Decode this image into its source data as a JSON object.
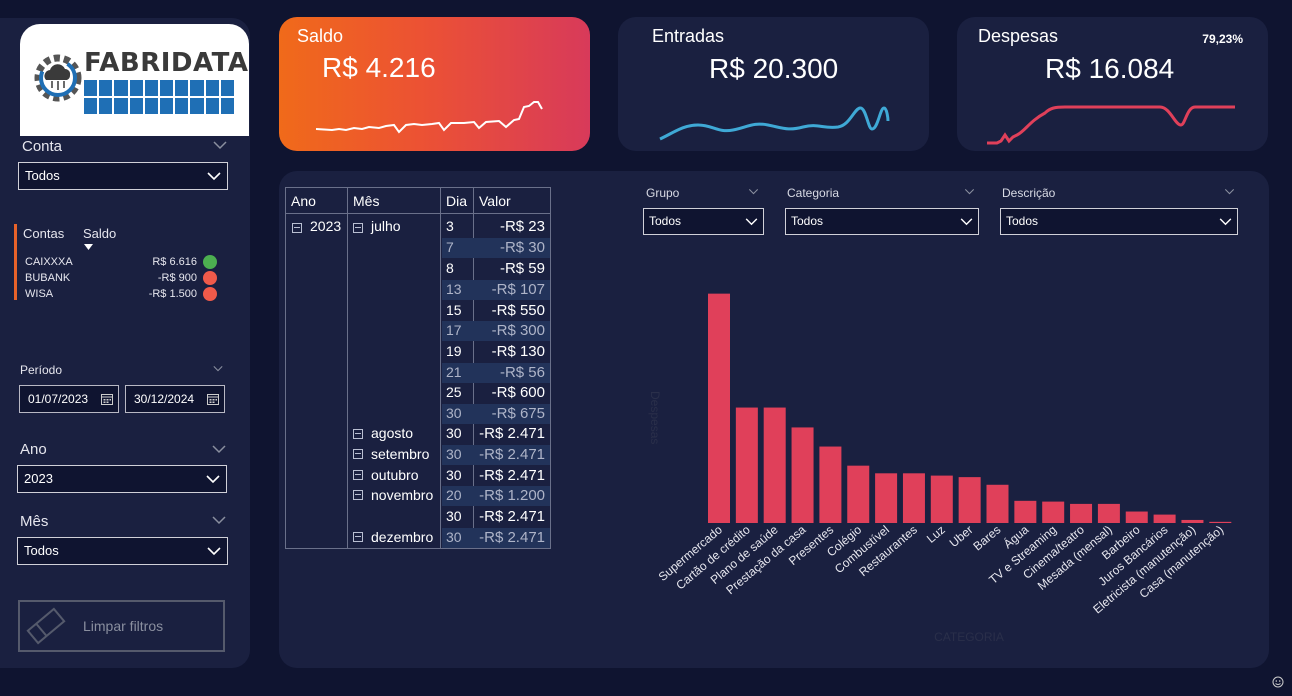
{
  "sidebar": {
    "logo_text": "FABRIDATA",
    "conta": {
      "label": "Conta",
      "value": "Todos"
    },
    "contas_table": {
      "headers": [
        "Contas",
        "Saldo"
      ],
      "rows": [
        {
          "name": "CAIXXXA",
          "value": "R$ 6.616",
          "status_color": "#4caf50"
        },
        {
          "name": "BUBANK",
          "value": "-R$ 900",
          "status_color": "#f05a4a"
        },
        {
          "name": "WISA",
          "value": "-R$ 1.500",
          "status_color": "#f05a4a"
        }
      ]
    },
    "periodo": {
      "label": "Período",
      "start": "01/07/2023",
      "end": "30/12/2024"
    },
    "ano": {
      "label": "Ano",
      "value": "2023"
    },
    "mes": {
      "label": "Mês",
      "value": "Todos"
    },
    "clear_label": "Limpar filtros"
  },
  "kpis": {
    "saldo": {
      "title": "Saldo",
      "value": "R$ 4.216"
    },
    "entradas": {
      "title": "Entradas",
      "value": "R$ 20.300"
    },
    "despesas": {
      "title": "Despesas",
      "value": "R$ 16.084",
      "pct": "79,23%"
    }
  },
  "colors": {
    "accent": "#e8622a",
    "bar": "#e0405a",
    "entradas_line": "#3fa9d6",
    "despesas_line": "#e0405a"
  },
  "matrix": {
    "headers": [
      "Ano",
      "Mês",
      "Dia",
      "Valor"
    ],
    "year": "2023",
    "months": [
      {
        "name": "julho",
        "rows": [
          {
            "dia": "3",
            "valor": "-R$ 23"
          },
          {
            "dia": "7",
            "valor": "-R$ 30"
          },
          {
            "dia": "8",
            "valor": "-R$ 59"
          },
          {
            "dia": "13",
            "valor": "-R$ 107"
          },
          {
            "dia": "15",
            "valor": "-R$ 550"
          },
          {
            "dia": "17",
            "valor": "-R$ 300"
          },
          {
            "dia": "19",
            "valor": "-R$ 130"
          },
          {
            "dia": "21",
            "valor": "-R$ 56"
          },
          {
            "dia": "25",
            "valor": "-R$ 600"
          },
          {
            "dia": "30",
            "valor": "-R$ 675"
          }
        ]
      },
      {
        "name": "agosto",
        "rows": [
          {
            "dia": "30",
            "valor": "-R$ 2.471"
          }
        ]
      },
      {
        "name": "setembro",
        "rows": [
          {
            "dia": "30",
            "valor": "-R$ 2.471"
          }
        ]
      },
      {
        "name": "outubro",
        "rows": [
          {
            "dia": "30",
            "valor": "-R$ 2.471"
          }
        ]
      },
      {
        "name": "novembro",
        "rows": [
          {
            "dia": "20",
            "valor": "-R$ 1.200"
          },
          {
            "dia": "30",
            "valor": "-R$ 2.471"
          }
        ]
      },
      {
        "name": "dezembro",
        "rows": [
          {
            "dia": "30",
            "valor": "-R$ 2.471"
          }
        ]
      }
    ]
  },
  "slicers": {
    "grupo": {
      "label": "Grupo",
      "value": "Todos"
    },
    "categoria": {
      "label": "Categoria",
      "value": "Todos"
    },
    "descricao": {
      "label": "Descrição",
      "value": "Todos"
    }
  },
  "chart_data": {
    "type": "bar",
    "xlabel": "CATEGORIA",
    "ylabel": "Despesas",
    "categories": [
      "Supermercado",
      "Cartão de crédito",
      "Plano de saúde",
      "Prestação da casa",
      "Presentes",
      "Colégio",
      "Combustível",
      "Restaurantes",
      "Luz",
      "Uber",
      "Bares",
      "Água",
      "TV e Streaming",
      "Cinema/teatro",
      "Mesada (mensal)",
      "Barbeiro",
      "Juros Bancários",
      "Eletricista (manutenção)",
      "Casa (manutenção)"
    ],
    "values": [
      3000,
      1510,
      1510,
      1250,
      1000,
      750,
      650,
      650,
      620,
      600,
      500,
      290,
      280,
      250,
      250,
      150,
      110,
      40,
      15
    ],
    "ylim": [
      0,
      3100
    ]
  }
}
